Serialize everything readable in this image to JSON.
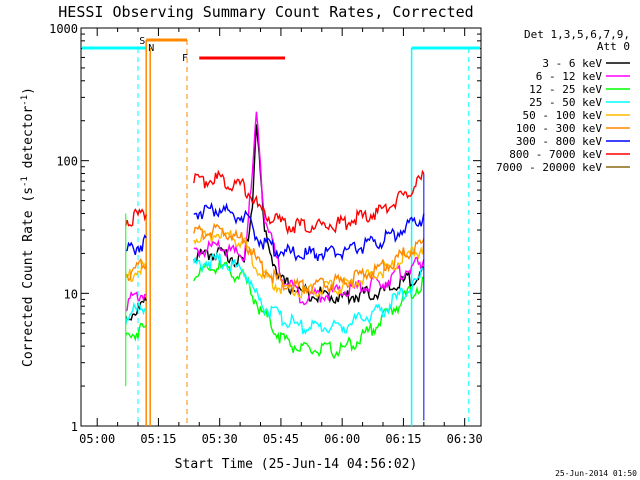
{
  "chart_data": {
    "type": "line",
    "title": "HESSI Observing Summary Count Rates, Corrected",
    "xlabel": "Start Time (25-Jun-14 04:56:02)",
    "ylabel_main": "Corrected Count Rate (s",
    "ylabel_sup1": "-1",
    "ylabel_mid": " detector",
    "ylabel_sup2": "-1",
    "ylabel_end": ")",
    "y_scale": "log",
    "ylim": [
      1,
      1000
    ],
    "xlim": [
      "04:56:02",
      "06:34"
    ],
    "x_ticks": [
      "05:00",
      "05:15",
      "05:30",
      "05:45",
      "06:00",
      "06:15",
      "06:30"
    ],
    "y_ticks": [
      "1",
      "10",
      "100",
      "1000"
    ],
    "footer_date": "25-Jun-2014 01:50",
    "legend": {
      "header_line1": "Det 1,3,5,6,7,9,",
      "header_line2": "Att 0",
      "placement": "top-right"
    },
    "series": [
      {
        "name": "3 - 6 keV",
        "color": "#000000",
        "x": [
          "05:07",
          "05:12",
          "05:24",
          "05:30",
          "05:36",
          "05:38",
          "05:39",
          "05:41",
          "05:45",
          "05:50",
          "06:00",
          "06:10",
          "06:17",
          "06:20"
        ],
        "values": [
          7,
          9,
          20,
          22,
          18,
          50,
          220,
          30,
          13,
          11,
          10,
          11,
          14,
          15
        ]
      },
      {
        "name": "6 - 12 keV",
        "color": "#ff00ff",
        "x": [
          "05:07",
          "05:12",
          "05:24",
          "05:30",
          "05:36",
          "05:38",
          "05:39",
          "05:41",
          "05:45",
          "05:50",
          "06:00",
          "06:10",
          "06:17",
          "06:20"
        ],
        "values": [
          9,
          11,
          22,
          24,
          20,
          80,
          250,
          40,
          15,
          10,
          11,
          13,
          17,
          18
        ]
      },
      {
        "name": "12 - 25 keV",
        "color": "#00ff00",
        "x": [
          "05:07",
          "05:12",
          "05:24",
          "05:30",
          "05:36",
          "05:40",
          "05:45",
          "05:50",
          "06:00",
          "06:05",
          "06:10",
          "06:17",
          "06:20"
        ],
        "values": [
          5,
          6,
          15,
          17,
          14,
          8,
          5,
          4,
          4,
          5,
          7,
          11,
          13
        ]
      },
      {
        "name": "25 - 50 keV",
        "color": "#00ffff",
        "x": [
          "05:07",
          "05:12",
          "05:24",
          "05:30",
          "05:36",
          "05:40",
          "05:45",
          "05:50",
          "06:00",
          "06:10",
          "06:17",
          "06:20"
        ],
        "values": [
          7,
          9,
          18,
          19,
          16,
          9,
          7,
          6,
          6,
          8,
          12,
          15
        ]
      },
      {
        "name": "50 - 100 keV",
        "color": "#ffbb00",
        "x": [
          "05:07",
          "05:12",
          "05:24",
          "05:30",
          "05:36",
          "05:40",
          "05:45",
          "05:50",
          "06:00",
          "06:10",
          "06:17",
          "06:20"
        ],
        "values": [
          14,
          17,
          28,
          30,
          26,
          15,
          12,
          11,
          12,
          16,
          21,
          24
        ]
      },
      {
        "name": "100 - 300 keV",
        "color": "#ff8800",
        "x": [
          "05:07",
          "05:12",
          "05:24",
          "05:30",
          "05:36",
          "05:40",
          "05:45",
          "05:50",
          "06:00",
          "06:10",
          "06:17",
          "06:20"
        ],
        "values": [
          15,
          18,
          30,
          32,
          27,
          17,
          13,
          12,
          13,
          17,
          23,
          26
        ]
      },
      {
        "name": "300 - 800 keV",
        "color": "#0000ff",
        "x": [
          "05:07",
          "05:12",
          "05:24",
          "05:30",
          "05:36",
          "05:40",
          "05:45",
          "05:50",
          "06:00",
          "06:10",
          "06:17",
          "06:20"
        ],
        "values": [
          22,
          26,
          44,
          46,
          40,
          27,
          22,
          21,
          22,
          27,
          36,
          40
        ]
      },
      {
        "name": "800 - 7000 keV",
        "color": "#ff0000",
        "x": [
          "05:07",
          "05:12",
          "05:24",
          "05:30",
          "05:36",
          "05:40",
          "05:45",
          "05:50",
          "06:00",
          "06:10",
          "06:17",
          "06:20"
        ],
        "values": [
          38,
          44,
          75,
          78,
          68,
          45,
          36,
          34,
          36,
          45,
          65,
          80
        ]
      },
      {
        "name": "7000 - 20000 keV",
        "color": "#8b6914",
        "x": [],
        "values": []
      }
    ],
    "flags": [
      {
        "label": "S",
        "color": "#ff8800"
      },
      {
        "label": "N",
        "color": "#00ffff"
      },
      {
        "label": "F",
        "color": "#ff0000"
      }
    ]
  }
}
